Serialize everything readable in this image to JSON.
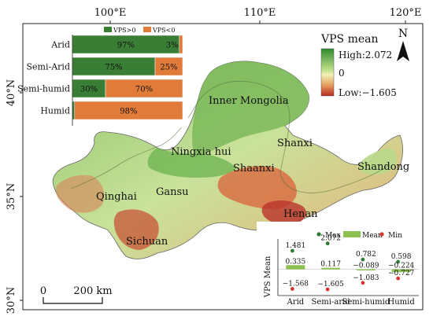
{
  "coords": {
    "lon_labels": [
      "100°E",
      "110°E",
      "120°E"
    ],
    "lat_labels": [
      "40°N",
      "35°N",
      "30°N"
    ]
  },
  "scalebar": {
    "zero": "0",
    "distance": "200 km"
  },
  "north_arrow": {
    "label": "N"
  },
  "legend": {
    "title": "VPS mean",
    "high": "High:2.072",
    "mid": "0",
    "low": "Low:−1.605",
    "colors": {
      "high": "#2f8a2e",
      "mid": "#f4f0b5",
      "low": "#b72a23"
    }
  },
  "regions": [
    "Inner Mongolia",
    "Ningxia hui",
    "Shanxi",
    "Shaanxi",
    "Shandong",
    "Gansu",
    "Qinghai",
    "Henan",
    "Sichuan"
  ],
  "chart_data": [
    {
      "type": "bar",
      "stacked": true,
      "orientation": "horizontal",
      "categories": [
        "Arid",
        "Semi-Arid",
        "Semi-humid",
        "Humid"
      ],
      "series": [
        {
          "name": "VPS>0",
          "values": [
            97,
            75,
            30,
            2
          ],
          "labels": [
            "97%",
            "75%",
            "30%",
            "2%"
          ],
          "color": "#3a7d35"
        },
        {
          "name": "VPS<0",
          "values": [
            3,
            25,
            70,
            98
          ],
          "labels": [
            "3%",
            "25%",
            "70%",
            "98%"
          ],
          "color": "#e07b39"
        }
      ],
      "xlim": [
        0,
        100
      ],
      "legend_position": "top"
    },
    {
      "type": "bar",
      "categories": [
        "Arid",
        "Semi-arid",
        "Semi-humid",
        "Humid"
      ],
      "ylabel": "VPS Mean",
      "series": [
        {
          "name": "Max",
          "kind": "point",
          "values": [
            1.481,
            2.072,
            0.782,
            0.598
          ],
          "labels": [
            "1.481",
            "2.072",
            "0.782",
            "0.598"
          ],
          "color": "#2e7d32"
        },
        {
          "name": "Mean",
          "kind": "bar",
          "values": [
            0.335,
            0.117,
            -0.089,
            -0.224
          ],
          "labels": [
            "0.335",
            "0.117",
            "−0.089",
            "−0.224"
          ],
          "color": "#8cc152"
        },
        {
          "name": "Min",
          "kind": "point",
          "values": [
            -1.568,
            -1.605,
            -1.083,
            -0.727
          ],
          "labels": [
            "−1.568",
            "−1.605",
            "−1.083",
            "−0.727"
          ],
          "color": "#d9342b"
        }
      ],
      "ylim": [
        -2.1,
        2.3
      ],
      "legend_position": "top"
    }
  ]
}
